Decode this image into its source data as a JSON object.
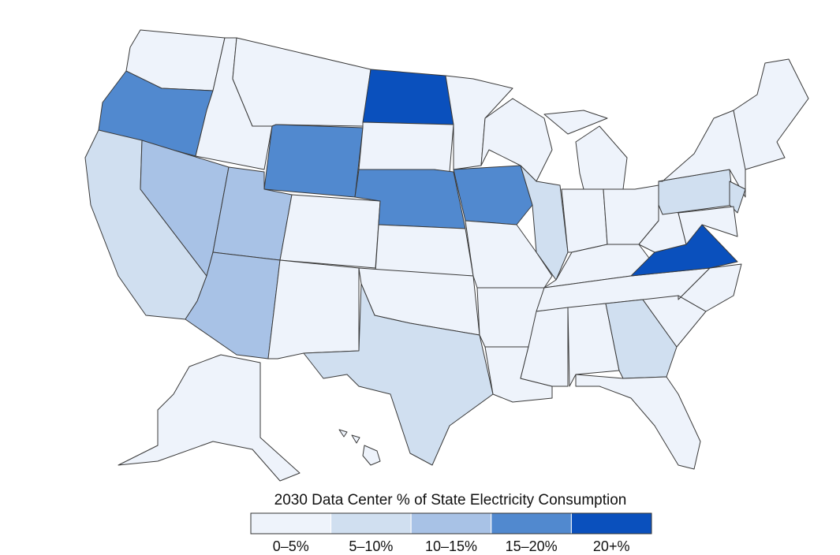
{
  "legend": {
    "title": "2030 Data Center % of State Electricity Consumption",
    "items": [
      {
        "label": "0–5%",
        "color": "#eef3fb"
      },
      {
        "label": "5–10%",
        "color": "#d0dff0"
      },
      {
        "label": "10–15%",
        "color": "#a8c2e6"
      },
      {
        "label": "15–20%",
        "color": "#5189cf"
      },
      {
        "label": "20+%",
        "color": "#0a50bd"
      }
    ]
  }
}
